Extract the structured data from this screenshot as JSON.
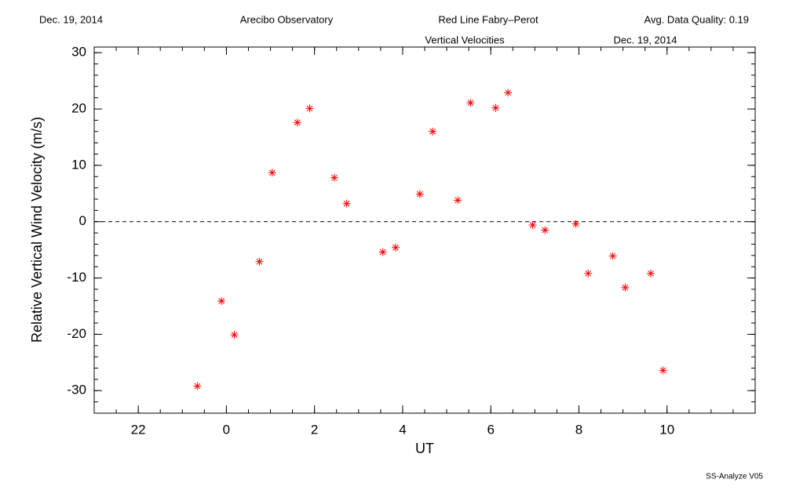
{
  "header": {
    "date": "Dec. 19, 2014",
    "site": "Arecibo Observatory",
    "instrument": "Red Line Fabry–Perot",
    "quality": "Avg. Data Quality: 0.19"
  },
  "footer": "SS-Analyze V05",
  "chart_data": {
    "type": "scatter",
    "title": "Vertical Velocities",
    "subtitle": "Dec. 19, 2014",
    "x_label": "UT",
    "y_label": "Relative Vertical Wind Velocity (m/s)",
    "color": "#ff0000",
    "reference_line": 0,
    "xlim": [
      -3,
      12
    ],
    "xticks": [
      {
        "value": -2,
        "label": "22"
      },
      0,
      2,
      4,
      6,
      8,
      10
    ],
    "xminor_step": 0.5,
    "ylim": [
      -34,
      31
    ],
    "yticks": [
      -30,
      -20,
      -10,
      0,
      10,
      20,
      30
    ],
    "yminor_step": 2,
    "x": [
      -0.66,
      -0.11,
      0.18,
      0.75,
      1.04,
      1.61,
      1.89,
      2.45,
      2.73,
      3.55,
      3.84,
      4.39,
      4.68,
      5.25,
      5.54,
      6.11,
      6.39,
      6.95,
      7.23,
      7.93,
      8.21,
      8.77,
      9.05,
      9.63,
      9.91
    ],
    "values": [
      -29.2,
      -14.1,
      -20.1,
      -7.1,
      8.7,
      17.6,
      20.1,
      7.8,
      3.2,
      -5.4,
      -4.6,
      4.9,
      16.0,
      3.8,
      21.1,
      20.2,
      22.9,
      -0.6,
      -1.5,
      -0.4,
      -9.2,
      -6.1,
      -11.7,
      -9.2,
      -26.4
    ]
  }
}
